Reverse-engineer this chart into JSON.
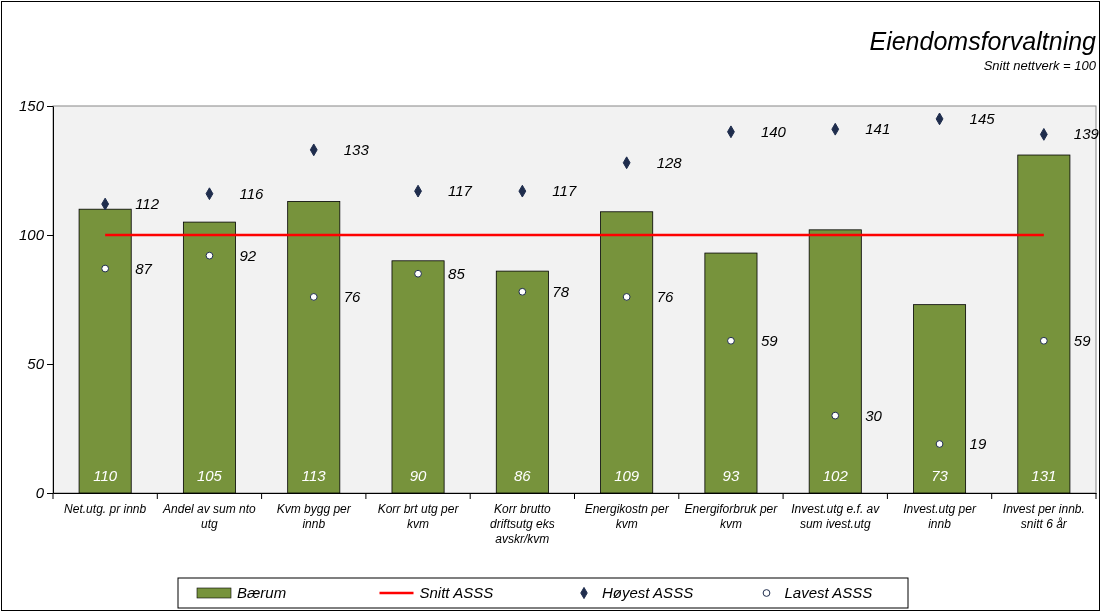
{
  "chart_data": {
    "type": "bar",
    "title": "Eiendomsforvaltning",
    "subtitle": "Snitt nettverk = 100",
    "categories": [
      "Net.utg. pr innb",
      "Andel av sum nto utg",
      "Kvm bygg per innb",
      "Korr brt utg per kvm",
      "Korr brutto driftsutg eks avskr/kvm",
      "Energikostn per kvm",
      "Energiforbruk per kvm",
      "Invest.utg e.f. av sum ivest.utg",
      "Invest.utg per innb",
      "Invest per innb. snitt 6 år"
    ],
    "series": [
      {
        "name": "Bærum",
        "color": "#77933c",
        "values": [
          110,
          105,
          113,
          90,
          86,
          109,
          93,
          102,
          73,
          131
        ],
        "value_labels": [
          "110",
          "105",
          "113",
          "90",
          "86",
          "109",
          "93",
          "102",
          "73",
          "131"
        ]
      },
      {
        "name": "Snitt ASSS",
        "type": "line",
        "color": "#ff0000",
        "values": [
          100,
          100,
          100,
          100,
          100,
          100,
          100,
          100,
          100,
          100
        ]
      },
      {
        "name": "Høyest ASSS",
        "type": "scatter",
        "marker": "diamond",
        "color": "#1f2d4d",
        "values": [
          112,
          116,
          133,
          117,
          117,
          128,
          140,
          141,
          145,
          139
        ],
        "value_labels": [
          "112",
          "116",
          "133",
          "117",
          "117",
          "128",
          "140",
          "141",
          "145",
          "139"
        ]
      },
      {
        "name": "Lavest ASSS",
        "type": "scatter",
        "marker": "circle",
        "color": "#ffffff",
        "values": [
          87,
          92,
          76,
          85,
          78,
          76,
          59,
          30,
          19,
          59
        ],
        "value_labels": [
          "87",
          "92",
          "76",
          "85",
          "78",
          "76",
          "59",
          "30",
          "19",
          "59"
        ]
      }
    ],
    "ylim": [
      0,
      150
    ],
    "yticks": [
      0,
      50,
      100,
      150
    ],
    "grid": false,
    "legend": "bottom"
  }
}
